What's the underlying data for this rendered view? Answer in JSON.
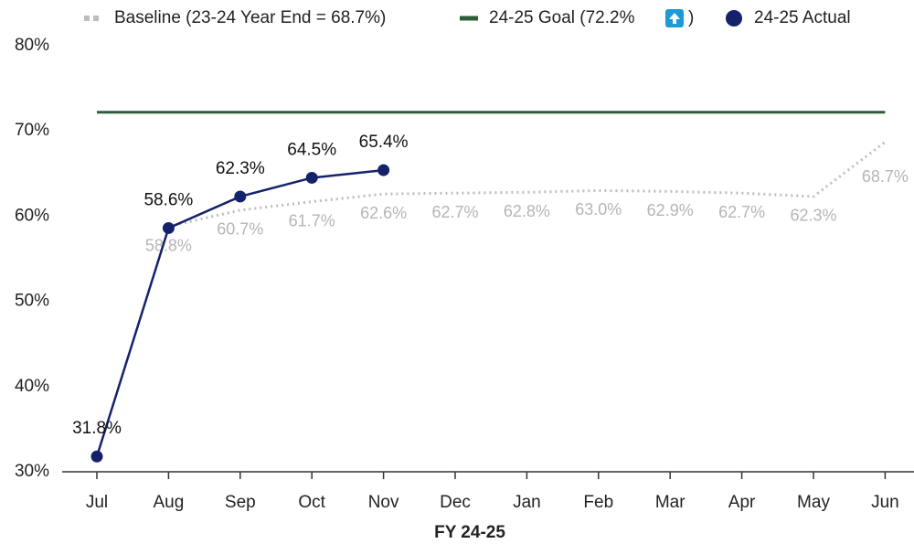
{
  "chart_data": {
    "type": "line",
    "x_label": "FY 24-25",
    "categories": [
      "Jul",
      "Aug",
      "Sep",
      "Oct",
      "Nov",
      "Dec",
      "Jan",
      "Feb",
      "Mar",
      "Apr",
      "May",
      "Jun"
    ],
    "ylim": [
      30,
      80
    ],
    "yticks": [
      {
        "value": 30,
        "label": "30%"
      },
      {
        "value": 40,
        "label": "40%"
      },
      {
        "value": 50,
        "label": "50%"
      },
      {
        "value": 60,
        "label": "60%"
      },
      {
        "value": 70,
        "label": "70%"
      },
      {
        "value": 80,
        "label": "80%"
      }
    ],
    "series": [
      {
        "name": "Baseline (23-24 Year End = 68.7%)",
        "color": "#bdbdbd",
        "style": "dotted",
        "values": [
          null,
          58.8,
          60.7,
          61.7,
          62.6,
          62.7,
          62.8,
          63.0,
          62.9,
          62.7,
          62.3,
          68.7
        ],
        "value_labels": [
          null,
          "58.8%",
          "60.7%",
          "61.7%",
          "62.6%",
          "62.7%",
          "62.8%",
          "63.0%",
          "62.9%",
          "62.7%",
          "62.3%",
          "68.7%"
        ]
      },
      {
        "name": "24-25 Goal (72.2%",
        "name_suffix": ")",
        "color": "#2e5e3a",
        "style": "solid",
        "values": [
          72.2,
          72.2,
          72.2,
          72.2,
          72.2,
          72.2,
          72.2,
          72.2,
          72.2,
          72.2,
          72.2,
          72.2
        ]
      },
      {
        "name": "24-25 Actual",
        "color": "#14226b",
        "style": "markers",
        "values": [
          31.8,
          58.6,
          62.3,
          64.5,
          65.4,
          null,
          null,
          null,
          null,
          null,
          null,
          null
        ],
        "value_labels": [
          "31.8%",
          "58.6%",
          "62.3%",
          "64.5%",
          "65.4%",
          null,
          null,
          null,
          null,
          null,
          null,
          null
        ]
      }
    ]
  }
}
